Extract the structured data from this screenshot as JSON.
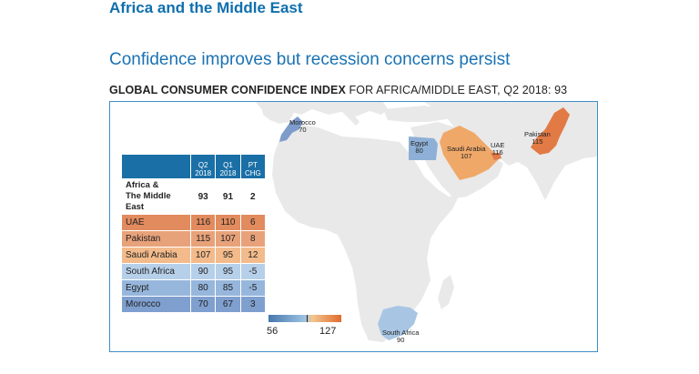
{
  "section_title": "Africa and the Middle East",
  "headline": "Confidence improves but recession concerns persist",
  "subtitle": {
    "bold": "GLOBAL CONSUMER CONFIDENCE INDEX",
    "rest": " FOR AFRICA/MIDDLE EAST, Q2 2018: 93"
  },
  "colors": {
    "title_blue": "#0e6fae",
    "header_blue": "#1a6fa6",
    "land_gray": "#e9e9e9",
    "uae": "#e07b4a",
    "pakistan": "#e27a45",
    "saudi": "#f0a869",
    "south_africa": "#a8c6e4",
    "egypt": "#8eb0d6",
    "morocco": "#7d9ccb"
  },
  "table": {
    "headers": [
      {
        "line1": "Q2",
        "line2": "2018"
      },
      {
        "line1": "Q1",
        "line2": "2018"
      },
      {
        "line1": "PT",
        "line2": "CHG"
      }
    ],
    "region": {
      "line1": "Africa &",
      "line2": "The Middle East",
      "q2": "93",
      "q1": "91",
      "chg": "2"
    },
    "rows": [
      {
        "country": "UAE",
        "q2": "116",
        "q1": "110",
        "chg": "6",
        "color": "#e28b5e"
      },
      {
        "country": "Pakistan",
        "q2": "115",
        "q1": "107",
        "chg": "8",
        "color": "#e8a27a"
      },
      {
        "country": "Saudi Arabia",
        "q2": "107",
        "q1": "95",
        "chg": "12",
        "color": "#f3bb8b"
      },
      {
        "country": "South Africa",
        "q2": "90",
        "q1": "95",
        "chg": "-5",
        "color": "#b7d0ea"
      },
      {
        "country": "Egypt",
        "q2": "80",
        "q1": "85",
        "chg": "-5",
        "color": "#96b6dc"
      },
      {
        "country": "Morocco",
        "q2": "70",
        "q1": "67",
        "chg": "3",
        "color": "#7f9fcf"
      }
    ]
  },
  "scale": {
    "min": "56",
    "max": "127",
    "marker_value": 93
  },
  "map_labels": {
    "morocco": {
      "name": "Morocco",
      "value": "70"
    },
    "egypt": {
      "name": "Egypt",
      "value": "80"
    },
    "saudi": {
      "name": "Saudi Arabia",
      "value": "107"
    },
    "uae": {
      "name": "UAE",
      "value": "116"
    },
    "pakistan": {
      "name": "Pakistan",
      "value": "115"
    },
    "south_africa": {
      "name": "South Africa",
      "value": "90"
    }
  }
}
